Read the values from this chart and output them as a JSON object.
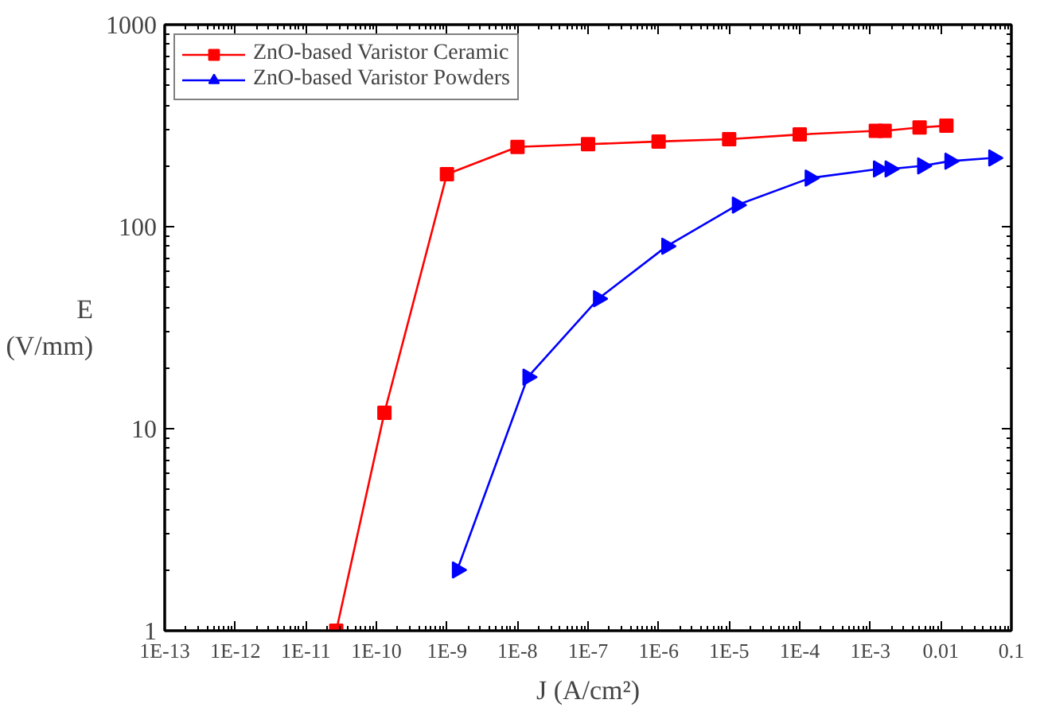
{
  "chart_data": {
    "type": "line",
    "xlabel": "J (A/cm²)",
    "ylabel": "E\n(V/mm)",
    "log": "xy",
    "x": [
      2.7e-11,
      1.3e-10,
      1e-09,
      1e-08,
      1e-07,
      1e-06,
      1e-05,
      0.0001,
      0.0012,
      0.0016,
      0.005,
      0.012
    ],
    "series": [
      {
        "name": "ZnO-based Varistor Ceramic",
        "color": "#ff0000",
        "marker": "square",
        "values": [
          1,
          12,
          182,
          248,
          256,
          264,
          271,
          286,
          298,
          298,
          310,
          316
        ]
      },
      {
        "name": "ZnO-based Varistor Powders",
        "color": "#0000ff",
        "marker": "triangle",
        "x": [
          1.4e-09,
          1.4e-08,
          1.4e-07,
          1.3e-06,
          1.3e-05,
          0.00014,
          0.0013,
          0.0019,
          0.0055,
          0.0134,
          0.056
        ],
        "values": [
          2,
          18,
          44,
          80,
          128,
          174,
          193,
          193,
          200,
          211,
          219
        ]
      }
    ],
    "xlim": [
      1e-13,
      0.1
    ],
    "ylim": [
      1,
      1000
    ],
    "xticks": [
      {
        "value": 1e-13,
        "label": "1E-13"
      },
      {
        "value": 1e-12,
        "label": "1E-12"
      },
      {
        "value": 1e-11,
        "label": "1E-11"
      },
      {
        "value": 1e-10,
        "label": "1E-10"
      },
      {
        "value": 1e-09,
        "label": "1E-9"
      },
      {
        "value": 1e-08,
        "label": "1E-8"
      },
      {
        "value": 1e-07,
        "label": "1E-7"
      },
      {
        "value": 1e-06,
        "label": "1E-6"
      },
      {
        "value": 1e-05,
        "label": "1E-5"
      },
      {
        "value": 0.0001,
        "label": "1E-4"
      },
      {
        "value": 0.001,
        "label": "1E-3"
      },
      {
        "value": 0.01,
        "label": "0.01"
      },
      {
        "value": 0.1,
        "label": "0.1"
      }
    ],
    "yticks": [
      1,
      10,
      100,
      1000
    ],
    "grid": false,
    "legend": "top left",
    "line_style": "solid"
  }
}
